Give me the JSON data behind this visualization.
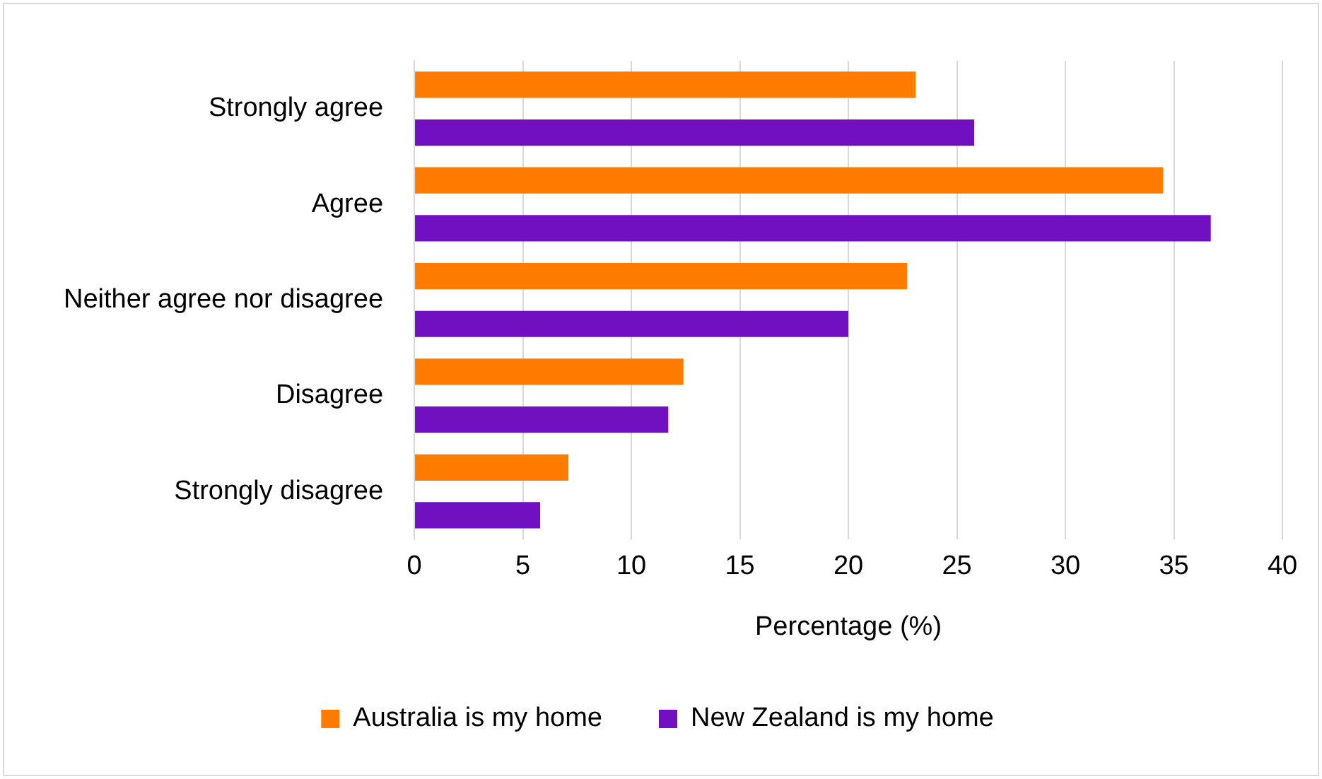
{
  "chart_data": {
    "type": "bar",
    "orientation": "horizontal",
    "xlabel": "Percentage (%)",
    "categories": [
      "Strongly agree",
      "Agree",
      "Neither agree nor disagree",
      "Disagree",
      "Strongly disagree"
    ],
    "series": [
      {
        "name": "Australia is my home",
        "color": "#ff7c00",
        "values": [
          23.1,
          34.5,
          22.7,
          12.4,
          7.1
        ]
      },
      {
        "name": "New Zealand is my home",
        "color": "#7010c0",
        "values": [
          25.8,
          36.7,
          20.0,
          11.7,
          5.8
        ]
      }
    ],
    "xlim": [
      0,
      40
    ],
    "xticks": [
      0,
      5,
      10,
      15,
      20,
      25,
      30,
      35,
      40
    ],
    "grid": "x",
    "legend": "bottom"
  }
}
